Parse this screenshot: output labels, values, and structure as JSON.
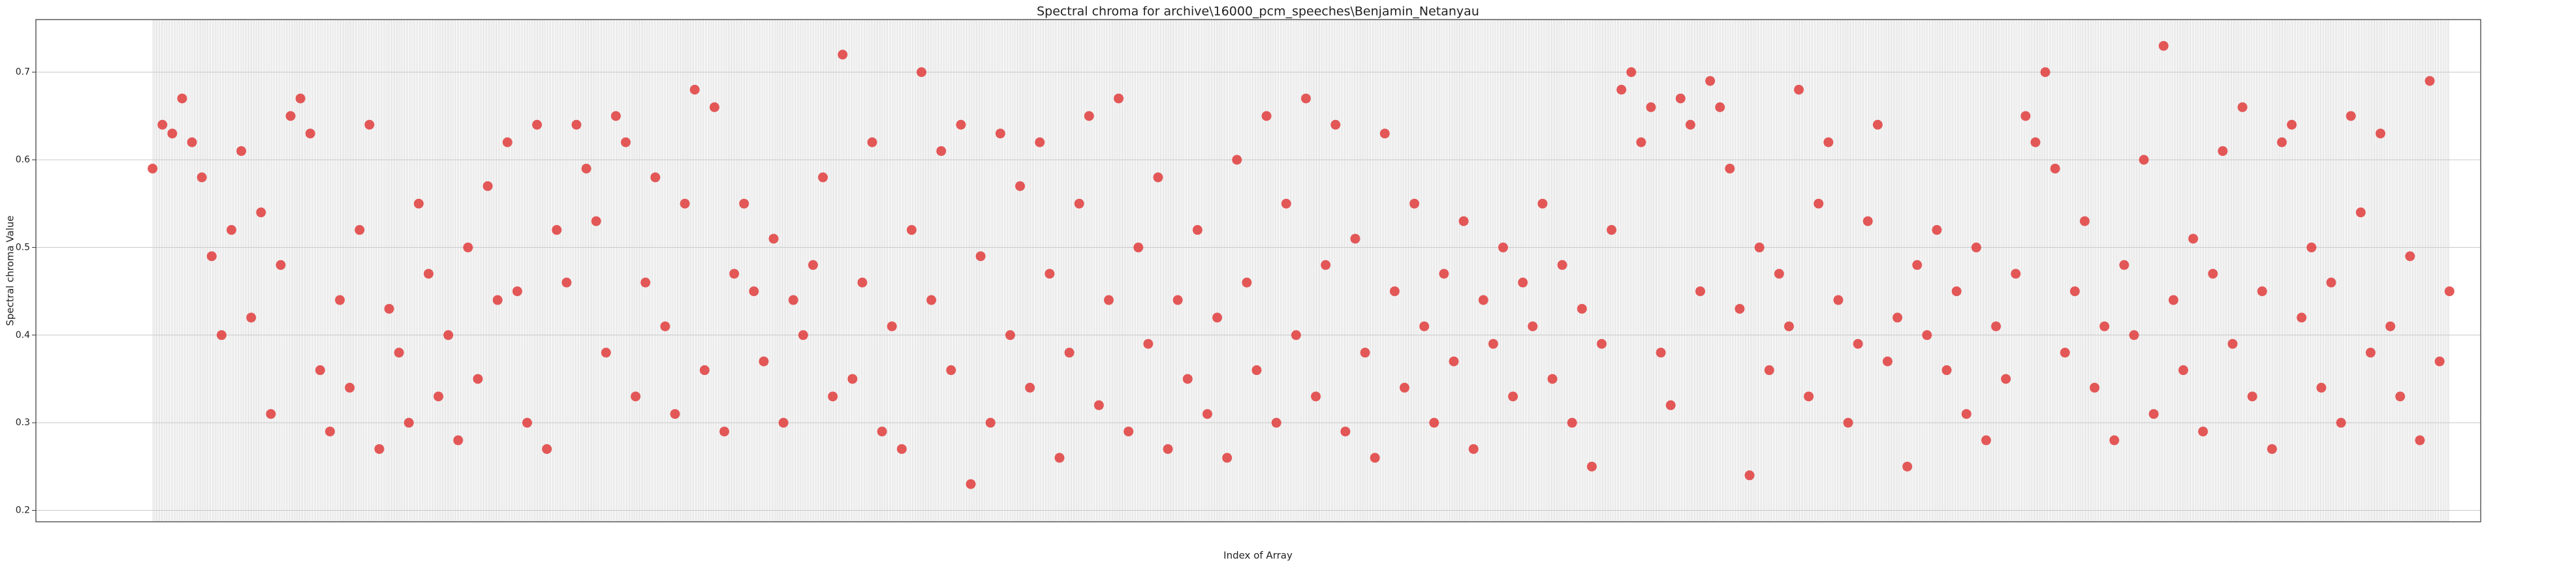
{
  "chart_data": {
    "type": "scatter",
    "title": "Spectral chroma for archive\\16000_pcm_speeches\\Benjamin_Netanyau",
    "x_label": "Index of Array",
    "y_label": "Spectral chroma Value",
    "color": "#e03c3c",
    "grid": true,
    "xlim": [
      -71,
      1417
    ],
    "ylim": [
      0.187,
      0.76
    ],
    "yticks": [
      0.2,
      0.3,
      0.4,
      0.5,
      0.6,
      0.7
    ],
    "x": [
      0,
      6,
      12,
      18,
      24,
      30,
      36,
      42,
      48,
      54,
      60,
      66,
      72,
      78,
      84,
      90,
      96,
      102,
      108,
      114,
      120,
      126,
      132,
      138,
      144,
      150,
      156,
      162,
      168,
      174,
      180,
      186,
      192,
      198,
      204,
      210,
      216,
      222,
      228,
      234,
      240,
      246,
      252,
      258,
      264,
      270,
      276,
      282,
      288,
      294,
      300,
      306,
      312,
      318,
      324,
      330,
      336,
      342,
      348,
      354,
      360,
      366,
      372,
      378,
      384,
      390,
      396,
      402,
      408,
      414,
      420,
      426,
      432,
      438,
      444,
      450,
      456,
      462,
      468,
      474,
      480,
      486,
      492,
      498,
      504,
      510,
      516,
      522,
      528,
      534,
      540,
      546,
      552,
      558,
      564,
      570,
      576,
      582,
      588,
      594,
      600,
      606,
      612,
      618,
      624,
      630,
      636,
      642,
      648,
      654,
      660,
      666,
      672,
      678,
      684,
      690,
      696,
      702,
      708,
      714,
      720,
      726,
      732,
      738,
      744,
      750,
      756,
      762,
      768,
      774,
      780,
      786,
      792,
      798,
      804,
      810,
      816,
      822,
      828,
      834,
      840,
      846,
      852,
      858,
      864,
      870,
      876,
      882,
      888,
      894,
      900,
      906,
      912,
      918,
      924,
      930,
      936,
      942,
      948,
      954,
      960,
      966,
      972,
      978,
      984,
      990,
      996,
      1002,
      1008,
      1014,
      1020,
      1026,
      1032,
      1038,
      1044,
      1050,
      1056,
      1062,
      1068,
      1074,
      1080,
      1086,
      1092,
      1098,
      1104,
      1110,
      1116,
      1122,
      1128,
      1134,
      1140,
      1146,
      1152,
      1158,
      1164,
      1170,
      1176,
      1182,
      1188,
      1194,
      1200,
      1206,
      1212,
      1218,
      1224,
      1230,
      1236,
      1242,
      1248,
      1254,
      1260,
      1266,
      1272,
      1278,
      1284,
      1290,
      1296,
      1302,
      1308,
      1314,
      1320,
      1326,
      1332,
      1338,
      1344,
      1350,
      1356,
      1362,
      1368,
      1374,
      1380,
      1386,
      1392,
      1398
    ],
    "values": [
      0.59,
      0.64,
      0.63,
      0.67,
      0.62,
      0.58,
      0.49,
      0.4,
      0.52,
      0.61,
      0.42,
      0.54,
      0.31,
      0.48,
      0.65,
      0.67,
      0.63,
      0.36,
      0.29,
      0.44,
      0.34,
      0.52,
      0.64,
      0.27,
      0.43,
      0.38,
      0.3,
      0.55,
      0.47,
      0.33,
      0.4,
      0.28,
      0.5,
      0.35,
      0.57,
      0.44,
      0.62,
      0.45,
      0.3,
      0.64,
      0.27,
      0.52,
      0.46,
      0.64,
      0.59,
      0.53,
      0.38,
      0.65,
      0.62,
      0.33,
      0.46,
      0.58,
      0.41,
      0.31,
      0.55,
      0.68,
      0.36,
      0.66,
      0.29,
      0.47,
      0.55,
      0.45,
      0.37,
      0.51,
      0.3,
      0.44,
      0.4,
      0.48,
      0.58,
      0.33,
      0.72,
      0.35,
      0.46,
      0.62,
      0.29,
      0.41,
      0.27,
      0.52,
      0.7,
      0.44,
      0.61,
      0.36,
      0.64,
      0.23,
      0.49,
      0.3,
      0.63,
      0.4,
      0.57,
      0.34,
      0.62,
      0.47,
      0.26,
      0.38,
      0.55,
      0.65,
      0.32,
      0.44,
      0.67,
      0.29,
      0.5,
      0.39,
      0.58,
      0.27,
      0.44,
      0.35,
      0.52,
      0.31,
      0.42,
      0.26,
      0.6,
      0.46,
      0.36,
      0.65,
      0.3,
      0.55,
      0.4,
      0.67,
      0.33,
      0.48,
      0.64,
      0.29,
      0.51,
      0.38,
      0.26,
      0.63,
      0.45,
      0.34,
      0.55,
      0.41,
      0.3,
      0.47,
      0.37,
      0.53,
      0.27,
      0.44,
      0.39,
      0.5,
      0.33,
      0.46,
      0.41,
      0.55,
      0.35,
      0.48,
      0.3,
      0.43,
      0.25,
      0.39,
      0.52,
      0.68,
      0.7,
      0.62,
      0.66,
      0.38,
      0.32,
      0.67,
      0.64,
      0.45,
      0.69,
      0.66,
      0.59,
      0.43,
      0.24,
      0.5,
      0.36,
      0.47,
      0.41,
      0.68,
      0.33,
      0.55,
      0.62,
      0.44,
      0.3,
      0.39,
      0.53,
      0.64,
      0.37,
      0.42,
      0.25,
      0.48,
      0.4,
      0.52,
      0.36,
      0.45,
      0.31,
      0.5,
      0.28,
      0.41,
      0.35,
      0.47,
      0.65,
      0.62,
      0.7,
      0.59,
      0.38,
      0.45,
      0.53,
      0.34,
      0.41,
      0.28,
      0.48,
      0.4,
      0.6,
      0.31,
      0.73,
      0.44,
      0.36,
      0.51,
      0.29,
      0.47,
      0.61,
      0.39,
      0.66,
      0.33,
      0.45,
      0.27,
      0.62,
      0.64,
      0.42,
      0.5,
      0.34,
      0.46,
      0.3,
      0.65,
      0.54,
      0.38,
      0.63,
      0.41,
      0.33,
      0.49,
      0.28,
      0.69,
      0.37,
      0.45
    ]
  }
}
